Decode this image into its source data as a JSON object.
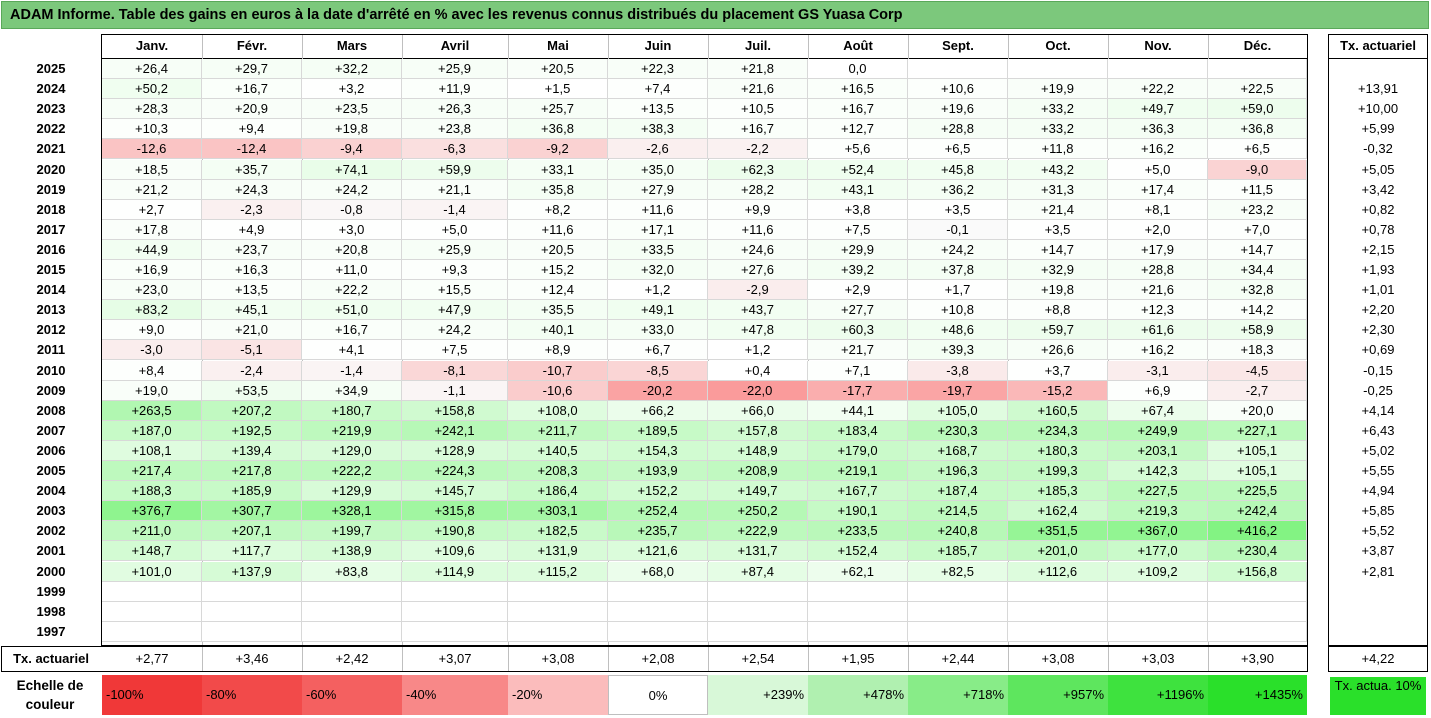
{
  "title": "ADAM Informe. Table des gains en euros à la date d'arrêté en % avec les revenus connus distribués du placement GS Yuasa Corp",
  "chart_data": {
    "type": "table",
    "months": [
      "Janv.",
      "Févr.",
      "Mars",
      "Avril",
      "Mai",
      "Juin",
      "Juil.",
      "Août",
      "Sept.",
      "Oct.",
      "Nov.",
      "Déc."
    ],
    "rate_header": "Tx. actuariel",
    "rows": [
      {
        "year": "2025",
        "values": [
          "+26,4",
          "+29,7",
          "+32,2",
          "+25,9",
          "+20,5",
          "+22,3",
          "+21,8",
          "0,0",
          "",
          "",
          "",
          ""
        ],
        "nums": [
          26.4,
          29.7,
          32.2,
          25.9,
          20.5,
          22.3,
          21.8,
          0,
          null,
          null,
          null,
          null
        ],
        "rate": ""
      },
      {
        "year": "2024",
        "values": [
          "+50,2",
          "+16,7",
          "+3,2",
          "+11,9",
          "+1,5",
          "+7,4",
          "+21,6",
          "+16,5",
          "+10,6",
          "+19,9",
          "+22,2",
          "+22,5"
        ],
        "nums": [
          50.2,
          16.7,
          3.2,
          11.9,
          1.5,
          7.4,
          21.6,
          16.5,
          10.6,
          19.9,
          22.2,
          22.5
        ],
        "rate": "+13,91"
      },
      {
        "year": "2023",
        "values": [
          "+28,3",
          "+20,9",
          "+23,5",
          "+26,3",
          "+25,7",
          "+13,5",
          "+10,5",
          "+16,7",
          "+19,6",
          "+33,2",
          "+49,7",
          "+59,0"
        ],
        "nums": [
          28.3,
          20.9,
          23.5,
          26.3,
          25.7,
          13.5,
          10.5,
          16.7,
          19.6,
          33.2,
          49.7,
          59.0
        ],
        "rate": "+10,00"
      },
      {
        "year": "2022",
        "values": [
          "+10,3",
          "+9,4",
          "+19,8",
          "+23,8",
          "+36,8",
          "+38,3",
          "+16,7",
          "+12,7",
          "+28,8",
          "+33,2",
          "+36,3",
          "+36,8"
        ],
        "nums": [
          10.3,
          9.4,
          19.8,
          23.8,
          36.8,
          38.3,
          16.7,
          12.7,
          28.8,
          33.2,
          36.3,
          36.8
        ],
        "rate": "+5,99"
      },
      {
        "year": "2021",
        "values": [
          "-12,6",
          "-12,4",
          "-9,4",
          "-6,3",
          "-9,2",
          "-2,6",
          "-2,2",
          "+5,6",
          "+6,5",
          "+11,8",
          "+16,2",
          "+6,5"
        ],
        "nums": [
          -12.6,
          -12.4,
          -9.4,
          -6.3,
          -9.2,
          -2.6,
          -2.2,
          5.6,
          6.5,
          11.8,
          16.2,
          6.5
        ],
        "rate": "-0,32"
      },
      {
        "year": "2020",
        "values": [
          "+18,5",
          "+35,7",
          "+74,1",
          "+59,9",
          "+33,1",
          "+35,0",
          "+62,3",
          "+52,4",
          "+45,8",
          "+43,2",
          "+5,0",
          "-9,0"
        ],
        "nums": [
          18.5,
          35.7,
          74.1,
          59.9,
          33.1,
          35.0,
          62.3,
          52.4,
          45.8,
          43.2,
          5.0,
          -9.0
        ],
        "rate": "+5,05"
      },
      {
        "year": "2019",
        "values": [
          "+21,2",
          "+24,3",
          "+24,2",
          "+21,1",
          "+35,8",
          "+27,9",
          "+28,2",
          "+43,1",
          "+36,2",
          "+31,3",
          "+17,4",
          "+11,5"
        ],
        "nums": [
          21.2,
          24.3,
          24.2,
          21.1,
          35.8,
          27.9,
          28.2,
          43.1,
          36.2,
          31.3,
          17.4,
          11.5
        ],
        "rate": "+3,42"
      },
      {
        "year": "2018",
        "values": [
          "+2,7",
          "-2,3",
          "-0,8",
          "-1,4",
          "+8,2",
          "+11,6",
          "+9,9",
          "+3,8",
          "+3,5",
          "+21,4",
          "+8,1",
          "+23,2"
        ],
        "nums": [
          2.7,
          -2.3,
          -0.8,
          -1.4,
          8.2,
          11.6,
          9.9,
          3.8,
          3.5,
          21.4,
          8.1,
          23.2
        ],
        "rate": "+0,82"
      },
      {
        "year": "2017",
        "values": [
          "+17,8",
          "+4,9",
          "+3,0",
          "+5,0",
          "+11,6",
          "+17,1",
          "+11,6",
          "+7,5",
          "-0,1",
          "+3,5",
          "+2,0",
          "+7,0"
        ],
        "nums": [
          17.8,
          4.9,
          3.0,
          5.0,
          11.6,
          17.1,
          11.6,
          7.5,
          -0.1,
          3.5,
          2.0,
          7.0
        ],
        "rate": "+0,78"
      },
      {
        "year": "2016",
        "values": [
          "+44,9",
          "+23,7",
          "+20,8",
          "+25,9",
          "+20,5",
          "+33,5",
          "+24,6",
          "+29,9",
          "+24,2",
          "+14,7",
          "+17,9",
          "+14,7"
        ],
        "nums": [
          44.9,
          23.7,
          20.8,
          25.9,
          20.5,
          33.5,
          24.6,
          29.9,
          24.2,
          14.7,
          17.9,
          14.7
        ],
        "rate": "+2,15"
      },
      {
        "year": "2015",
        "values": [
          "+16,9",
          "+16,3",
          "+11,0",
          "+9,3",
          "+15,2",
          "+32,0",
          "+27,6",
          "+39,2",
          "+37,8",
          "+32,9",
          "+28,8",
          "+34,4"
        ],
        "nums": [
          16.9,
          16.3,
          11.0,
          9.3,
          15.2,
          32.0,
          27.6,
          39.2,
          37.8,
          32.9,
          28.8,
          34.4
        ],
        "rate": "+1,93"
      },
      {
        "year": "2014",
        "values": [
          "+23,0",
          "+13,5",
          "+22,2",
          "+15,5",
          "+12,4",
          "+1,2",
          "-2,9",
          "+2,9",
          "+1,7",
          "+19,8",
          "+21,6",
          "+32,8"
        ],
        "nums": [
          23.0,
          13.5,
          22.2,
          15.5,
          12.4,
          1.2,
          -2.9,
          2.9,
          1.7,
          19.8,
          21.6,
          32.8
        ],
        "rate": "+1,01"
      },
      {
        "year": "2013",
        "values": [
          "+83,2",
          "+45,1",
          "+51,0",
          "+47,9",
          "+35,5",
          "+49,1",
          "+43,7",
          "+27,7",
          "+10,8",
          "+8,8",
          "+12,3",
          "+14,2"
        ],
        "nums": [
          83.2,
          45.1,
          51.0,
          47.9,
          35.5,
          49.1,
          43.7,
          27.7,
          10.8,
          8.8,
          12.3,
          14.2
        ],
        "rate": "+2,20"
      },
      {
        "year": "2012",
        "values": [
          "+9,0",
          "+21,0",
          "+16,7",
          "+24,2",
          "+40,1",
          "+33,0",
          "+47,8",
          "+60,3",
          "+48,6",
          "+59,7",
          "+61,6",
          "+58,9"
        ],
        "nums": [
          9.0,
          21.0,
          16.7,
          24.2,
          40.1,
          33.0,
          47.8,
          60.3,
          48.6,
          59.7,
          61.6,
          58.9
        ],
        "rate": "+2,30"
      },
      {
        "year": "2011",
        "values": [
          "-3,0",
          "-5,1",
          "+4,1",
          "+7,5",
          "+8,9",
          "+6,7",
          "+1,2",
          "+21,7",
          "+39,3",
          "+26,6",
          "+16,2",
          "+18,3"
        ],
        "nums": [
          -3.0,
          -5.1,
          4.1,
          7.5,
          8.9,
          6.7,
          1.2,
          21.7,
          39.3,
          26.6,
          16.2,
          18.3
        ],
        "rate": "+0,69"
      },
      {
        "year": "2010",
        "values": [
          "+8,4",
          "-2,4",
          "-1,4",
          "-8,1",
          "-10,7",
          "-8,5",
          "+0,4",
          "+7,1",
          "-3,8",
          "+3,7",
          "-3,1",
          "-4,5"
        ],
        "nums": [
          8.4,
          -2.4,
          -1.4,
          -8.1,
          -10.7,
          -8.5,
          0.4,
          7.1,
          -3.8,
          3.7,
          -3.1,
          -4.5
        ],
        "rate": "-0,15"
      },
      {
        "year": "2009",
        "values": [
          "+19,0",
          "+53,5",
          "+34,9",
          "-1,1",
          "-10,6",
          "-20,2",
          "-22,0",
          "-17,7",
          "-19,7",
          "-15,2",
          "+6,9",
          "-2,7"
        ],
        "nums": [
          19.0,
          53.5,
          34.9,
          -1.1,
          -10.6,
          -20.2,
          -22.0,
          -17.7,
          -19.7,
          -15.2,
          6.9,
          -2.7
        ],
        "rate": "-0,25"
      },
      {
        "year": "2008",
        "values": [
          "+263,5",
          "+207,2",
          "+180,7",
          "+158,8",
          "+108,0",
          "+66,2",
          "+66,0",
          "+44,1",
          "+105,0",
          "+160,5",
          "+67,4",
          "+20,0"
        ],
        "nums": [
          263.5,
          207.2,
          180.7,
          158.8,
          108.0,
          66.2,
          66.0,
          44.1,
          105.0,
          160.5,
          67.4,
          20.0
        ],
        "rate": "+4,14"
      },
      {
        "year": "2007",
        "values": [
          "+187,0",
          "+192,5",
          "+219,9",
          "+242,1",
          "+211,7",
          "+189,5",
          "+157,8",
          "+183,4",
          "+230,3",
          "+234,3",
          "+249,9",
          "+227,1"
        ],
        "nums": [
          187.0,
          192.5,
          219.9,
          242.1,
          211.7,
          189.5,
          157.8,
          183.4,
          230.3,
          234.3,
          249.9,
          227.1
        ],
        "rate": "+6,43"
      },
      {
        "year": "2006",
        "values": [
          "+108,1",
          "+139,4",
          "+129,0",
          "+128,9",
          "+140,5",
          "+154,3",
          "+148,9",
          "+179,0",
          "+168,7",
          "+180,3",
          "+203,1",
          "+105,1"
        ],
        "nums": [
          108.1,
          139.4,
          129.0,
          128.9,
          140.5,
          154.3,
          148.9,
          179.0,
          168.7,
          180.3,
          203.1,
          105.1
        ],
        "rate": "+5,02"
      },
      {
        "year": "2005",
        "values": [
          "+217,4",
          "+217,8",
          "+222,2",
          "+224,3",
          "+208,3",
          "+193,9",
          "+208,9",
          "+219,1",
          "+196,3",
          "+199,3",
          "+142,3",
          "+105,1"
        ],
        "nums": [
          217.4,
          217.8,
          222.2,
          224.3,
          208.3,
          193.9,
          208.9,
          219.1,
          196.3,
          199.3,
          142.3,
          105.1
        ],
        "rate": "+5,55"
      },
      {
        "year": "2004",
        "values": [
          "+188,3",
          "+185,9",
          "+129,9",
          "+145,7",
          "+186,4",
          "+152,2",
          "+149,7",
          "+167,7",
          "+187,4",
          "+185,3",
          "+227,5",
          "+225,5"
        ],
        "nums": [
          188.3,
          185.9,
          129.9,
          145.7,
          186.4,
          152.2,
          149.7,
          167.7,
          187.4,
          185.3,
          227.5,
          225.5
        ],
        "rate": "+4,94"
      },
      {
        "year": "2003",
        "values": [
          "+376,7",
          "+307,7",
          "+328,1",
          "+315,8",
          "+303,1",
          "+252,4",
          "+250,2",
          "+190,1",
          "+214,5",
          "+162,4",
          "+219,3",
          "+242,4"
        ],
        "nums": [
          376.7,
          307.7,
          328.1,
          315.8,
          303.1,
          252.4,
          250.2,
          190.1,
          214.5,
          162.4,
          219.3,
          242.4
        ],
        "rate": "+5,85"
      },
      {
        "year": "2002",
        "values": [
          "+211,0",
          "+207,1",
          "+199,7",
          "+190,8",
          "+182,5",
          "+235,7",
          "+222,9",
          "+233,5",
          "+240,8",
          "+351,5",
          "+367,0",
          "+416,2"
        ],
        "nums": [
          211.0,
          207.1,
          199.7,
          190.8,
          182.5,
          235.7,
          222.9,
          233.5,
          240.8,
          351.5,
          367.0,
          416.2
        ],
        "rate": "+5,52"
      },
      {
        "year": "2001",
        "values": [
          "+148,7",
          "+117,7",
          "+138,9",
          "+109,6",
          "+131,9",
          "+121,6",
          "+131,7",
          "+152,4",
          "+185,7",
          "+201,0",
          "+177,0",
          "+230,4"
        ],
        "nums": [
          148.7,
          117.7,
          138.9,
          109.6,
          131.9,
          121.6,
          131.7,
          152.4,
          185.7,
          201.0,
          177.0,
          230.4
        ],
        "rate": "+3,87"
      },
      {
        "year": "2000",
        "values": [
          "+101,0",
          "+137,9",
          "+83,8",
          "+114,9",
          "+115,2",
          "+68,0",
          "+87,4",
          "+62,1",
          "+82,5",
          "+112,6",
          "+109,2",
          "+156,8"
        ],
        "nums": [
          101.0,
          137.9,
          83.8,
          114.9,
          115.2,
          68.0,
          87.4,
          62.1,
          82.5,
          112.6,
          109.2,
          156.8
        ],
        "rate": "+2,81"
      },
      {
        "year": "1999",
        "values": [
          "",
          "",
          "",
          "",
          "",
          "",
          "",
          "",
          "",
          "",
          "",
          ""
        ],
        "nums": [
          null,
          null,
          null,
          null,
          null,
          null,
          null,
          null,
          null,
          null,
          null,
          null
        ],
        "rate": ""
      },
      {
        "year": "1998",
        "values": [
          "",
          "",
          "",
          "",
          "",
          "",
          "",
          "",
          "",
          "",
          "",
          ""
        ],
        "nums": [
          null,
          null,
          null,
          null,
          null,
          null,
          null,
          null,
          null,
          null,
          null,
          null
        ],
        "rate": ""
      },
      {
        "year": "1997",
        "values": [
          "",
          "",
          "",
          "",
          "",
          "",
          "",
          "",
          "",
          "",
          "",
          ""
        ],
        "nums": [
          null,
          null,
          null,
          null,
          null,
          null,
          null,
          null,
          null,
          null,
          null,
          null
        ],
        "rate": ""
      }
    ],
    "total_label": "Tx. actuariel",
    "totals": [
      "+2,77",
      "+3,46",
      "+2,42",
      "+3,07",
      "+3,08",
      "+2,08",
      "+2,54",
      "+1,95",
      "+2,44",
      "+3,08",
      "+3,03",
      "+3,90"
    ],
    "total_rate": "+4,22"
  },
  "legend": {
    "label": "Echelle de couleur",
    "items": [
      {
        "text": "-100%",
        "color": "#f03838"
      },
      {
        "text": "-80%",
        "color": "#f24a4a"
      },
      {
        "text": "-60%",
        "color": "#f46060"
      },
      {
        "text": "-40%",
        "color": "#f88888"
      },
      {
        "text": "-20%",
        "color": "#fbbcbc"
      },
      {
        "text": "0%",
        "color": "#ffffff"
      },
      {
        "text": "+239%",
        "color": "#d8f8d8"
      },
      {
        "text": "+478%",
        "color": "#b0f0b0"
      },
      {
        "text": "+718%",
        "color": "#88ec88"
      },
      {
        "text": "+957%",
        "color": "#5ee65e"
      },
      {
        "text": "+1196%",
        "color": "#3ee23e"
      },
      {
        "text": "+1435%",
        "color": "#2ae02a"
      }
    ],
    "rate_label": "Tx. actua. 10%",
    "rate_color": "#2ae02a"
  },
  "colors": {
    "title_bg": "#7cc87c",
    "neg": "#f03838",
    "pos": "#2ae02a"
  }
}
